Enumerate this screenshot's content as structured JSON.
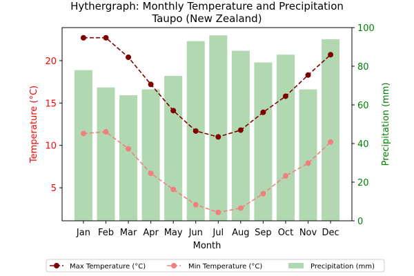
{
  "chart_data": {
    "type": "bar+line",
    "title": "Hythergraph: Monthly Temperature and Precipitation",
    "subtitle": "Taupo (New Zealand)",
    "xlabel": "Month",
    "ylabel_left": "Temperature (°C)",
    "ylabel_right": "Precipitation (mm)",
    "categories": [
      "Jan",
      "Feb",
      "Mar",
      "Apr",
      "May",
      "Jun",
      "Jul",
      "Aug",
      "Sep",
      "Oct",
      "Nov",
      "Dec"
    ],
    "ylim_left": [
      1.1,
      23.9
    ],
    "yticks_left": [
      5,
      10,
      15,
      20
    ],
    "ylim_right": [
      0,
      100
    ],
    "yticks_right": [
      0,
      20,
      40,
      60,
      80,
      100
    ],
    "series": [
      {
        "name": "Max Temperature (°C)",
        "kind": "line",
        "axis": "left",
        "color": "#800000",
        "linestyle": "dashed",
        "marker": "circle",
        "values": [
          22.7,
          22.7,
          20.4,
          17.2,
          14.1,
          11.7,
          11.0,
          11.8,
          13.9,
          15.8,
          18.3,
          20.7
        ]
      },
      {
        "name": "Min Temperature (°C)",
        "kind": "line",
        "axis": "left",
        "color": "#f08080",
        "linestyle": "dashed",
        "marker": "circle",
        "values": [
          11.4,
          11.6,
          9.6,
          6.7,
          4.8,
          3.0,
          2.1,
          2.6,
          4.3,
          6.4,
          7.9,
          10.4
        ]
      },
      {
        "name": "Precipitation (mm)",
        "kind": "bar",
        "axis": "right",
        "color": "#b2d8b2",
        "values": [
          78,
          69,
          65,
          68,
          75,
          93,
          96,
          88,
          82,
          86,
          68,
          94
        ]
      }
    ],
    "legend_placement": "bottom-center",
    "grid": false
  }
}
